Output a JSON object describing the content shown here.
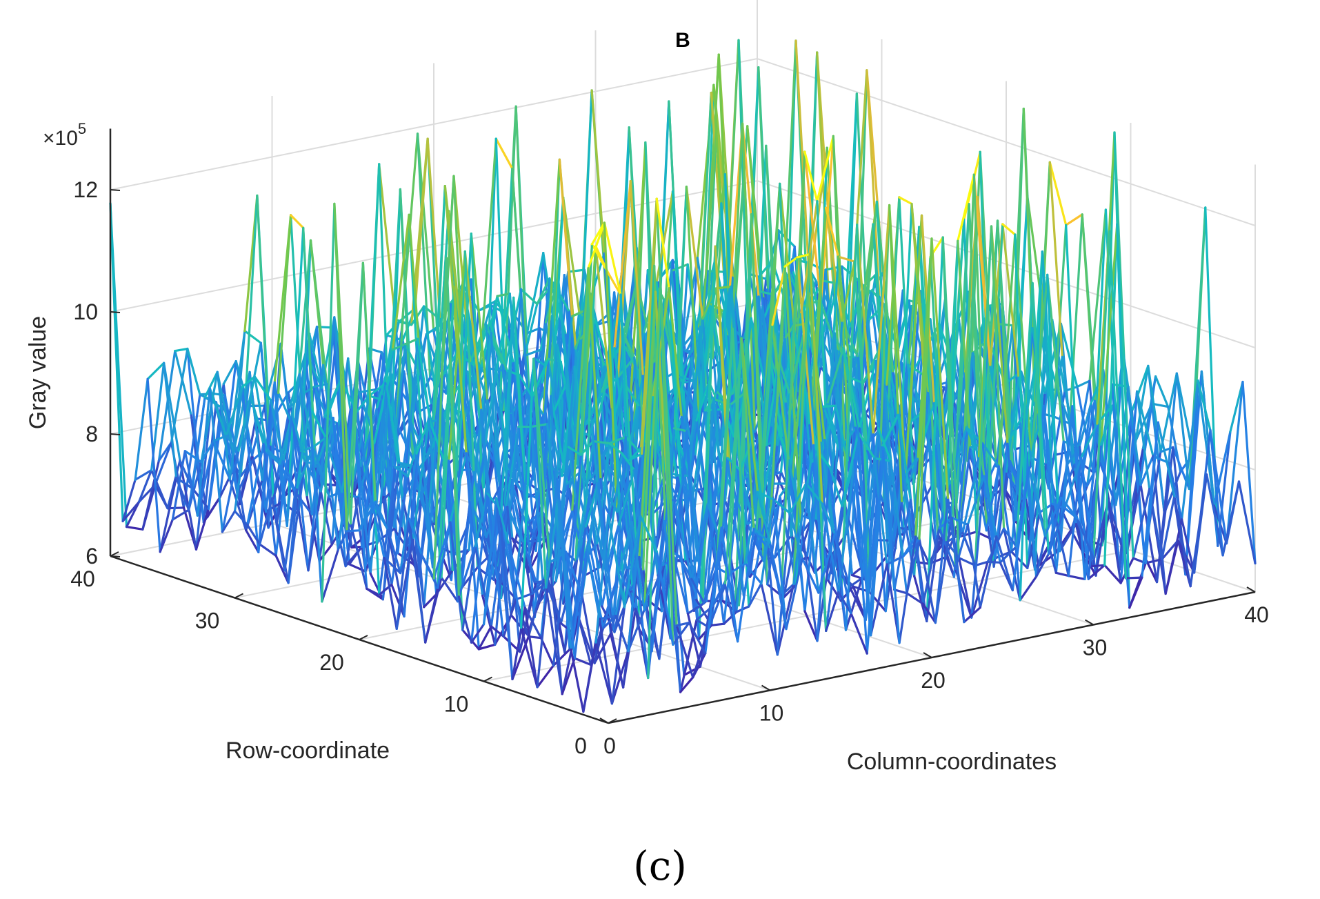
{
  "chart_data": {
    "type": "mesh3d",
    "title": "B",
    "panel_label": "(c)",
    "exponent_label": {
      "prefix": "×10",
      "power": "5"
    },
    "xlabel": "Column-coordinates",
    "ylabel": "Row-coordinate",
    "zlabel": "Gray value",
    "xlim": [
      0,
      40
    ],
    "ylim": [
      0,
      40
    ],
    "zlim": [
      6,
      13
    ],
    "x_ticks": [
      0,
      10,
      20,
      30,
      40
    ],
    "y_ticks": [
      0,
      10,
      20,
      30,
      40
    ],
    "z_ticks": [
      6,
      8,
      10,
      12
    ],
    "z_scale": 100000,
    "grid": true,
    "colormap": "parula",
    "grid_size": [
      40,
      40
    ],
    "note": "Surface mesh of gray values over a 40x40 pixel window; individual values are generated from a seeded pattern approximating the depicted noise."
  }
}
